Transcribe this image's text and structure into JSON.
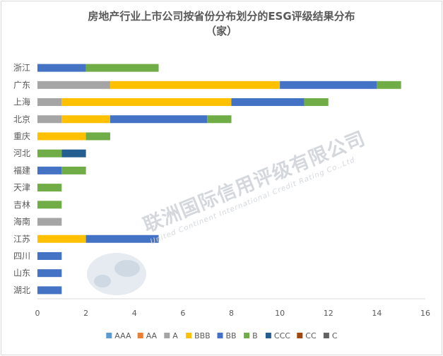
{
  "chart_data": {
    "type": "bar",
    "orientation": "horizontal",
    "stacked": true,
    "title_line1": "房地产行业上市公司按省份分布划分的ESG评级结果分布",
    "title_line2": "（家）",
    "categories": [
      "浙江",
      "广东",
      "上海",
      "北京",
      "重庆",
      "河北",
      "福建",
      "天津",
      "吉林",
      "海南",
      "江苏",
      "四川",
      "山东",
      "湖北"
    ],
    "xlim": [
      0,
      16
    ],
    "xticks": [
      0,
      2,
      4,
      6,
      8,
      10,
      12,
      14,
      16
    ],
    "grid": false,
    "legend_position": "bottom",
    "series": [
      {
        "name": "AAA",
        "color": "#5b9bd5",
        "values": [
          0,
          0,
          0,
          0,
          0,
          0,
          0,
          0,
          0,
          0,
          0,
          0,
          0,
          0
        ]
      },
      {
        "name": "AA",
        "color": "#ed7d31",
        "values": [
          0,
          0,
          0,
          0,
          0,
          0,
          0,
          0,
          0,
          0,
          0,
          0,
          0,
          0
        ]
      },
      {
        "name": "A",
        "color": "#a5a5a5",
        "values": [
          0,
          3,
          1,
          1,
          0,
          0,
          0,
          0,
          0,
          1,
          0,
          0,
          0,
          0
        ]
      },
      {
        "name": "BBB",
        "color": "#ffc000",
        "values": [
          0,
          7,
          7,
          2,
          2,
          0,
          0,
          0,
          0,
          0,
          2,
          0,
          0,
          0
        ]
      },
      {
        "name": "BB",
        "color": "#4472c4",
        "values": [
          2,
          4,
          3,
          4,
          0,
          0,
          1,
          0,
          0,
          0,
          3,
          1,
          1,
          1
        ]
      },
      {
        "name": "B",
        "color": "#70ad47",
        "values": [
          3,
          1,
          1,
          1,
          1,
          1,
          1,
          1,
          1,
          0,
          0,
          0,
          0,
          0
        ]
      },
      {
        "name": "CCC",
        "color": "#255e91",
        "values": [
          0,
          0,
          0,
          0,
          0,
          1,
          0,
          0,
          0,
          0,
          0,
          0,
          0,
          0
        ]
      },
      {
        "name": "CC",
        "color": "#9e480e",
        "values": [
          0,
          0,
          0,
          0,
          0,
          0,
          0,
          0,
          0,
          0,
          0,
          0,
          0,
          0
        ]
      },
      {
        "name": "C",
        "color": "#636363",
        "values": [
          0,
          0,
          0,
          0,
          0,
          0,
          0,
          0,
          0,
          0,
          0,
          0,
          0,
          0
        ]
      }
    ]
  },
  "watermark": {
    "cn": "联洲国际信用评级有限公司",
    "en": "United Continent International Credit Rating Co.,Ltd"
  }
}
